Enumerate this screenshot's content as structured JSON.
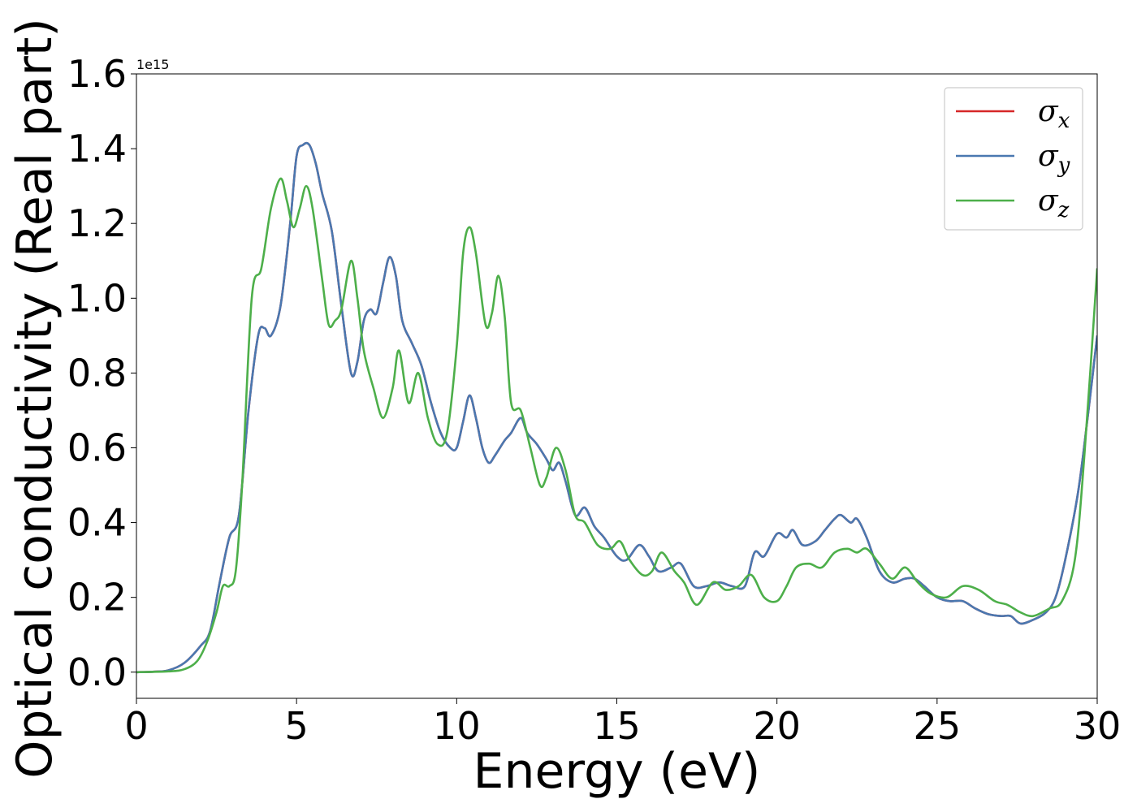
{
  "chart_data": {
    "type": "line",
    "xlabel": "Energy (eV)",
    "ylabel": "Optical conductivity (Real part)",
    "y_offset_label": "1e15",
    "xlim": [
      0,
      30
    ],
    "ylim": [
      -0.07,
      1.6
    ],
    "xticks": [
      0,
      5,
      10,
      15,
      20,
      25,
      30
    ],
    "xtick_labels": [
      "0",
      "5",
      "10",
      "15",
      "20",
      "25",
      "30"
    ],
    "yticks": [
      0.0,
      0.2,
      0.4,
      0.6,
      0.8,
      1.0,
      1.2,
      1.4,
      1.6
    ],
    "ytick_labels": [
      "0.0",
      "0.2",
      "0.4",
      "0.6",
      "0.8",
      "1.0",
      "1.2",
      "1.4",
      "1.6"
    ],
    "grid": false,
    "legend_position": "top-right",
    "series": [
      {
        "name": "σx",
        "name_base": "σ",
        "name_sub": "x",
        "color": "#d62728",
        "points": [
          [
            0,
            0
          ],
          [
            0.5,
            0.001
          ],
          [
            1,
            0.005
          ],
          [
            1.5,
            0.025
          ],
          [
            2,
            0.07
          ],
          [
            2.3,
            0.11
          ],
          [
            2.6,
            0.24
          ],
          [
            2.9,
            0.36
          ],
          [
            3.2,
            0.42
          ],
          [
            3.5,
            0.7
          ],
          [
            3.8,
            0.9
          ],
          [
            4,
            0.92
          ],
          [
            4.2,
            0.9
          ],
          [
            4.5,
            0.98
          ],
          [
            4.8,
            1.2
          ],
          [
            5,
            1.38
          ],
          [
            5.2,
            1.41
          ],
          [
            5.4,
            1.41
          ],
          [
            5.6,
            1.36
          ],
          [
            5.8,
            1.28
          ],
          [
            6.1,
            1.18
          ],
          [
            6.4,
            0.98
          ],
          [
            6.7,
            0.8
          ],
          [
            6.9,
            0.83
          ],
          [
            7.1,
            0.94
          ],
          [
            7.3,
            0.97
          ],
          [
            7.5,
            0.96
          ],
          [
            7.7,
            1.04
          ],
          [
            7.9,
            1.11
          ],
          [
            8.1,
            1.06
          ],
          [
            8.3,
            0.94
          ],
          [
            8.6,
            0.88
          ],
          [
            8.9,
            0.82
          ],
          [
            9.2,
            0.72
          ],
          [
            9.5,
            0.64
          ],
          [
            9.8,
            0.6
          ],
          [
            10,
            0.6
          ],
          [
            10.2,
            0.67
          ],
          [
            10.4,
            0.74
          ],
          [
            10.6,
            0.68
          ],
          [
            10.8,
            0.6
          ],
          [
            11,
            0.56
          ],
          [
            11.2,
            0.58
          ],
          [
            11.5,
            0.62
          ],
          [
            11.7,
            0.64
          ],
          [
            12,
            0.68
          ],
          [
            12.2,
            0.64
          ],
          [
            12.5,
            0.61
          ],
          [
            12.8,
            0.57
          ],
          [
            13,
            0.54
          ],
          [
            13.2,
            0.56
          ],
          [
            13.4,
            0.51
          ],
          [
            13.7,
            0.42
          ],
          [
            14,
            0.44
          ],
          [
            14.3,
            0.39
          ],
          [
            14.6,
            0.36
          ],
          [
            15,
            0.31
          ],
          [
            15.3,
            0.3
          ],
          [
            15.7,
            0.34
          ],
          [
            16,
            0.31
          ],
          [
            16.3,
            0.27
          ],
          [
            16.7,
            0.28
          ],
          [
            17,
            0.29
          ],
          [
            17.4,
            0.23
          ],
          [
            17.8,
            0.23
          ],
          [
            18.2,
            0.24
          ],
          [
            18.6,
            0.23
          ],
          [
            19,
            0.23
          ],
          [
            19.3,
            0.32
          ],
          [
            19.6,
            0.31
          ],
          [
            20,
            0.37
          ],
          [
            20.3,
            0.36
          ],
          [
            20.5,
            0.38
          ],
          [
            20.8,
            0.34
          ],
          [
            21.2,
            0.35
          ],
          [
            21.5,
            0.38
          ],
          [
            21.8,
            0.41
          ],
          [
            22,
            0.42
          ],
          [
            22.3,
            0.4
          ],
          [
            22.5,
            0.41
          ],
          [
            22.8,
            0.36
          ],
          [
            23.2,
            0.27
          ],
          [
            23.6,
            0.24
          ],
          [
            24,
            0.25
          ],
          [
            24.3,
            0.25
          ],
          [
            24.6,
            0.23
          ],
          [
            25,
            0.2
          ],
          [
            25.4,
            0.19
          ],
          [
            25.8,
            0.19
          ],
          [
            26.2,
            0.17
          ],
          [
            26.6,
            0.155
          ],
          [
            27,
            0.15
          ],
          [
            27.3,
            0.15
          ],
          [
            27.6,
            0.13
          ],
          [
            28,
            0.14
          ],
          [
            28.4,
            0.16
          ],
          [
            28.7,
            0.2
          ],
          [
            29,
            0.3
          ],
          [
            29.4,
            0.48
          ],
          [
            29.7,
            0.68
          ],
          [
            30,
            0.9
          ]
        ]
      },
      {
        "name": "σy",
        "name_base": "σ",
        "name_sub": "y",
        "color": "#4a78b0",
        "points": [
          [
            0,
            0
          ],
          [
            0.5,
            0.001
          ],
          [
            1,
            0.005
          ],
          [
            1.5,
            0.025
          ],
          [
            2,
            0.07
          ],
          [
            2.3,
            0.11
          ],
          [
            2.6,
            0.24
          ],
          [
            2.9,
            0.36
          ],
          [
            3.2,
            0.42
          ],
          [
            3.5,
            0.7
          ],
          [
            3.8,
            0.9
          ],
          [
            4,
            0.92
          ],
          [
            4.2,
            0.9
          ],
          [
            4.5,
            0.98
          ],
          [
            4.8,
            1.2
          ],
          [
            5,
            1.38
          ],
          [
            5.2,
            1.41
          ],
          [
            5.4,
            1.41
          ],
          [
            5.6,
            1.36
          ],
          [
            5.8,
            1.28
          ],
          [
            6.1,
            1.18
          ],
          [
            6.4,
            0.98
          ],
          [
            6.7,
            0.8
          ],
          [
            6.9,
            0.83
          ],
          [
            7.1,
            0.94
          ],
          [
            7.3,
            0.97
          ],
          [
            7.5,
            0.96
          ],
          [
            7.7,
            1.04
          ],
          [
            7.9,
            1.11
          ],
          [
            8.1,
            1.06
          ],
          [
            8.3,
            0.94
          ],
          [
            8.6,
            0.88
          ],
          [
            8.9,
            0.82
          ],
          [
            9.2,
            0.72
          ],
          [
            9.5,
            0.64
          ],
          [
            9.8,
            0.6
          ],
          [
            10,
            0.6
          ],
          [
            10.2,
            0.67
          ],
          [
            10.4,
            0.74
          ],
          [
            10.6,
            0.68
          ],
          [
            10.8,
            0.6
          ],
          [
            11,
            0.56
          ],
          [
            11.2,
            0.58
          ],
          [
            11.5,
            0.62
          ],
          [
            11.7,
            0.64
          ],
          [
            12,
            0.68
          ],
          [
            12.2,
            0.64
          ],
          [
            12.5,
            0.61
          ],
          [
            12.8,
            0.57
          ],
          [
            13,
            0.54
          ],
          [
            13.2,
            0.56
          ],
          [
            13.4,
            0.51
          ],
          [
            13.7,
            0.42
          ],
          [
            14,
            0.44
          ],
          [
            14.3,
            0.39
          ],
          [
            14.6,
            0.36
          ],
          [
            15,
            0.31
          ],
          [
            15.3,
            0.3
          ],
          [
            15.7,
            0.34
          ],
          [
            16,
            0.31
          ],
          [
            16.3,
            0.27
          ],
          [
            16.7,
            0.28
          ],
          [
            17,
            0.29
          ],
          [
            17.4,
            0.23
          ],
          [
            17.8,
            0.23
          ],
          [
            18.2,
            0.24
          ],
          [
            18.6,
            0.23
          ],
          [
            19,
            0.23
          ],
          [
            19.3,
            0.32
          ],
          [
            19.6,
            0.31
          ],
          [
            20,
            0.37
          ],
          [
            20.3,
            0.36
          ],
          [
            20.5,
            0.38
          ],
          [
            20.8,
            0.34
          ],
          [
            21.2,
            0.35
          ],
          [
            21.5,
            0.38
          ],
          [
            21.8,
            0.41
          ],
          [
            22,
            0.42
          ],
          [
            22.3,
            0.4
          ],
          [
            22.5,
            0.41
          ],
          [
            22.8,
            0.36
          ],
          [
            23.2,
            0.27
          ],
          [
            23.6,
            0.24
          ],
          [
            24,
            0.25
          ],
          [
            24.3,
            0.25
          ],
          [
            24.6,
            0.23
          ],
          [
            25,
            0.2
          ],
          [
            25.4,
            0.19
          ],
          [
            25.8,
            0.19
          ],
          [
            26.2,
            0.17
          ],
          [
            26.6,
            0.155
          ],
          [
            27,
            0.15
          ],
          [
            27.3,
            0.15
          ],
          [
            27.6,
            0.13
          ],
          [
            28,
            0.14
          ],
          [
            28.4,
            0.16
          ],
          [
            28.7,
            0.2
          ],
          [
            29,
            0.3
          ],
          [
            29.4,
            0.48
          ],
          [
            29.7,
            0.68
          ],
          [
            30,
            0.9
          ]
        ]
      },
      {
        "name": "σz",
        "name_base": "σ",
        "name_sub": "z",
        "color": "#4daf4a",
        "points": [
          [
            0,
            0
          ],
          [
            1,
            0.002
          ],
          [
            1.5,
            0.008
          ],
          [
            1.9,
            0.03
          ],
          [
            2.2,
            0.08
          ],
          [
            2.5,
            0.16
          ],
          [
            2.7,
            0.23
          ],
          [
            2.9,
            0.23
          ],
          [
            3.1,
            0.27
          ],
          [
            3.3,
            0.5
          ],
          [
            3.6,
            1.0
          ],
          [
            3.9,
            1.08
          ],
          [
            4.2,
            1.24
          ],
          [
            4.5,
            1.32
          ],
          [
            4.7,
            1.26
          ],
          [
            4.9,
            1.19
          ],
          [
            5.1,
            1.24
          ],
          [
            5.3,
            1.3
          ],
          [
            5.5,
            1.24
          ],
          [
            5.8,
            1.05
          ],
          [
            6,
            0.93
          ],
          [
            6.2,
            0.94
          ],
          [
            6.4,
            0.97
          ],
          [
            6.7,
            1.1
          ],
          [
            6.9,
            1.0
          ],
          [
            7.1,
            0.86
          ],
          [
            7.4,
            0.76
          ],
          [
            7.7,
            0.68
          ],
          [
            8,
            0.76
          ],
          [
            8.2,
            0.86
          ],
          [
            8.5,
            0.72
          ],
          [
            8.8,
            0.8
          ],
          [
            9.1,
            0.68
          ],
          [
            9.4,
            0.61
          ],
          [
            9.7,
            0.64
          ],
          [
            10,
            0.87
          ],
          [
            10.2,
            1.12
          ],
          [
            10.4,
            1.19
          ],
          [
            10.6,
            1.12
          ],
          [
            10.9,
            0.93
          ],
          [
            11.1,
            0.96
          ],
          [
            11.3,
            1.06
          ],
          [
            11.5,
            0.95
          ],
          [
            11.7,
            0.72
          ],
          [
            12,
            0.7
          ],
          [
            12.3,
            0.6
          ],
          [
            12.6,
            0.5
          ],
          [
            12.8,
            0.52
          ],
          [
            13.1,
            0.6
          ],
          [
            13.4,
            0.54
          ],
          [
            13.7,
            0.42
          ],
          [
            14,
            0.4
          ],
          [
            14.4,
            0.34
          ],
          [
            14.8,
            0.33
          ],
          [
            15.1,
            0.35
          ],
          [
            15.4,
            0.3
          ],
          [
            15.8,
            0.26
          ],
          [
            16.1,
            0.27
          ],
          [
            16.4,
            0.32
          ],
          [
            16.8,
            0.27
          ],
          [
            17.1,
            0.24
          ],
          [
            17.5,
            0.18
          ],
          [
            18,
            0.24
          ],
          [
            18.4,
            0.22
          ],
          [
            18.8,
            0.23
          ],
          [
            19.2,
            0.26
          ],
          [
            19.6,
            0.2
          ],
          [
            20,
            0.19
          ],
          [
            20.3,
            0.23
          ],
          [
            20.6,
            0.28
          ],
          [
            21,
            0.29
          ],
          [
            21.4,
            0.28
          ],
          [
            21.8,
            0.32
          ],
          [
            22.2,
            0.33
          ],
          [
            22.5,
            0.32
          ],
          [
            22.8,
            0.33
          ],
          [
            23.2,
            0.29
          ],
          [
            23.6,
            0.25
          ],
          [
            24,
            0.28
          ],
          [
            24.4,
            0.24
          ],
          [
            24.8,
            0.21
          ],
          [
            25.3,
            0.2
          ],
          [
            25.8,
            0.23
          ],
          [
            26.3,
            0.22
          ],
          [
            26.8,
            0.19
          ],
          [
            27.2,
            0.18
          ],
          [
            27.6,
            0.16
          ],
          [
            28,
            0.15
          ],
          [
            28.5,
            0.17
          ],
          [
            28.9,
            0.19
          ],
          [
            29.3,
            0.3
          ],
          [
            29.6,
            0.58
          ],
          [
            30,
            1.08
          ]
        ]
      }
    ]
  }
}
